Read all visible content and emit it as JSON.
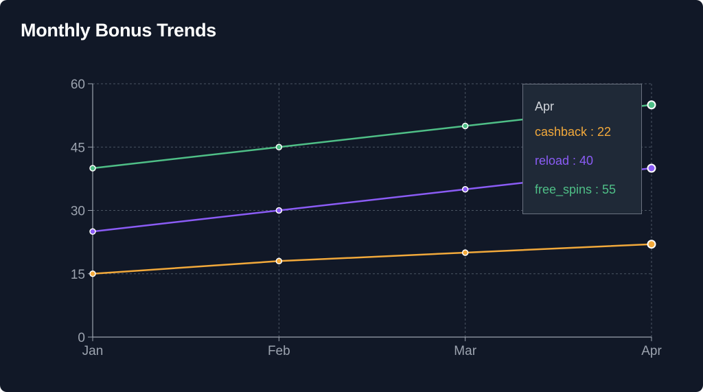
{
  "title": "Monthly Bonus Trends",
  "colors": {
    "background": "#111827",
    "grid": "#4b5563",
    "axis": "#9ca3af",
    "tick_text": "#9ca3af"
  },
  "chart_data": {
    "type": "line",
    "title": "Monthly Bonus Trends",
    "xlabel": "",
    "ylabel": "",
    "categories": [
      "Jan",
      "Feb",
      "Mar",
      "Apr"
    ],
    "ylim": [
      0,
      60
    ],
    "yticks": [
      "0",
      "15",
      "30",
      "45",
      "60"
    ],
    "grid": true,
    "series": [
      {
        "name": "cashback",
        "color": "#f2a93b",
        "values": [
          15,
          18,
          20,
          22
        ]
      },
      {
        "name": "reload",
        "color": "#8b5cf6",
        "values": [
          25,
          30,
          35,
          40
        ]
      },
      {
        "name": "free_spins",
        "color": "#4fbf87",
        "values": [
          40,
          45,
          50,
          55
        ]
      }
    ]
  },
  "tooltip": {
    "label": "Apr",
    "rows": [
      {
        "text": "cashback : 22",
        "color": "#f2a93b"
      },
      {
        "text": "reload : 40",
        "color": "#8b5cf6"
      },
      {
        "text": "free_spins : 55",
        "color": "#4fbf87"
      }
    ]
  }
}
